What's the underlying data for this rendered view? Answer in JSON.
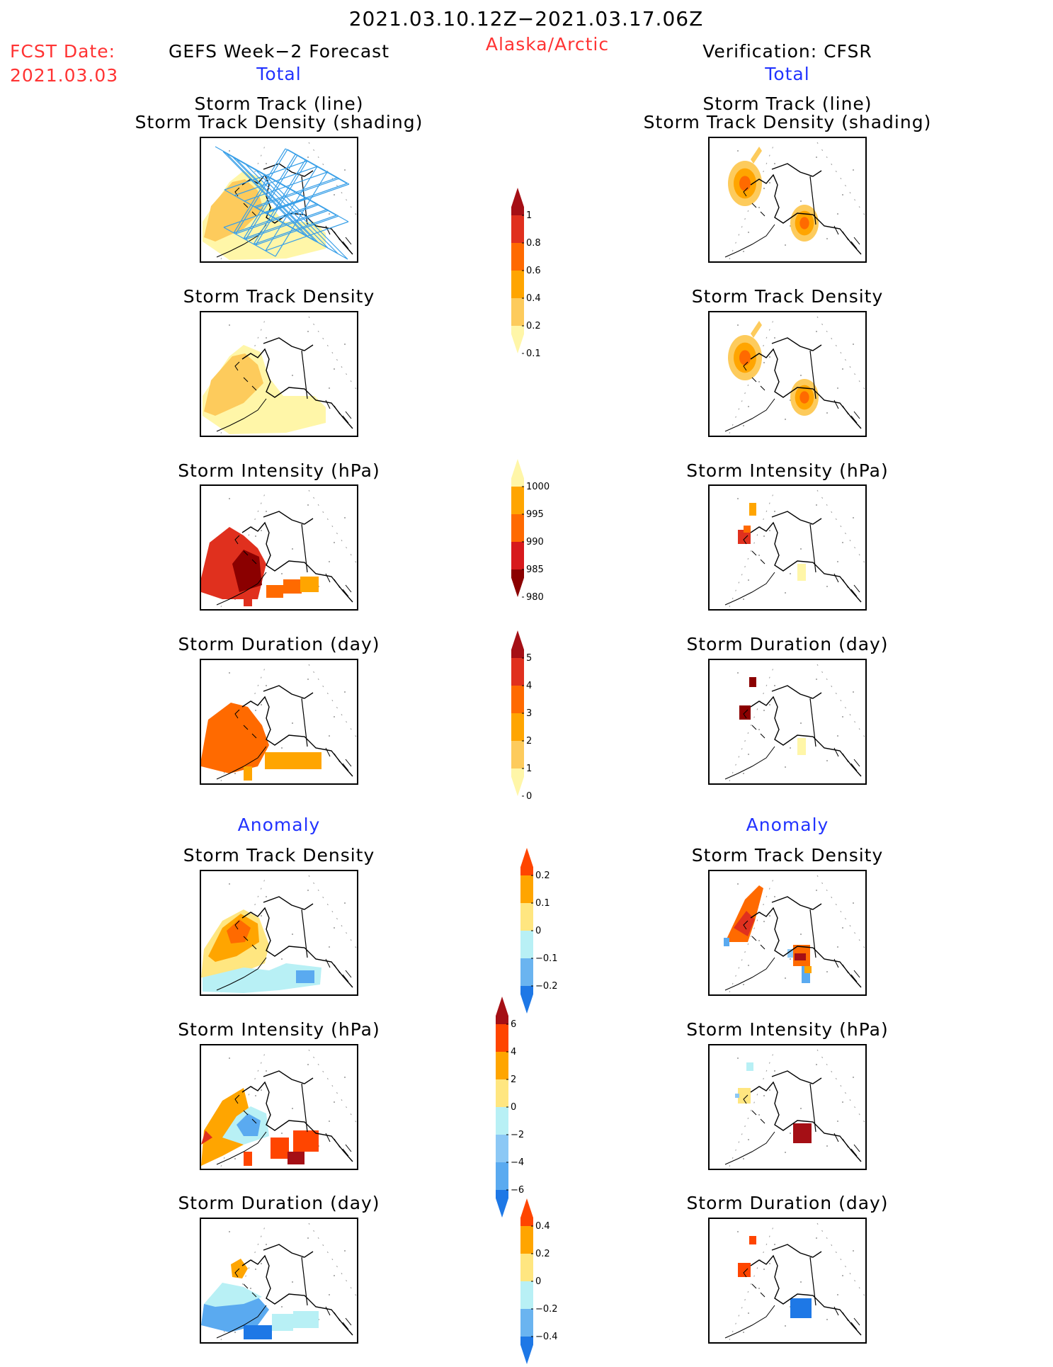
{
  "header": {
    "period": "2021.03.10.12Z−2021.03.17.06Z",
    "region": "Alaska/Arctic",
    "fcst_label": "FCST Date:",
    "fcst_date": "2021.03.03",
    "left_title": "GEFS Week−2 Forecast",
    "right_title": "Verification: CFSR",
    "total": "Total",
    "anomaly": "Anomaly"
  },
  "panel_titles": {
    "track_line": "Storm Track (line)",
    "track_shading": "Storm Track Density (shading)",
    "density": "Storm Track Density",
    "intensity": "Storm Intensity (hPa)",
    "duration": "Storm Duration (day)"
  },
  "colorbars": {
    "density_total": {
      "ticks": [
        "1",
        "0.8",
        "0.6",
        "0.4",
        "0.2",
        "0.1"
      ],
      "colors": [
        "#a50f15",
        "#e0301e",
        "#ff6a00",
        "#ffa500",
        "#fdcb5c",
        "#fff6a8"
      ]
    },
    "intensity_total": {
      "ticks": [
        "1000",
        "995",
        "990",
        "985",
        "980"
      ],
      "colors": [
        "#fff6a8",
        "#ffa500",
        "#ff6a00",
        "#d7191c",
        "#8b0000"
      ]
    },
    "duration_total": {
      "ticks": [
        "5",
        "4",
        "3",
        "2",
        "1",
        "0"
      ],
      "colors": [
        "#a50f15",
        "#e0301e",
        "#ff6a00",
        "#ffa500",
        "#fdcb5c",
        "#fff6a8"
      ]
    },
    "density_anom": {
      "ticks": [
        "0.2",
        "0.1",
        "0",
        "−0.1",
        "−0.2"
      ],
      "colors": [
        "#ff4500",
        "#ffa500",
        "#ffe680",
        "#b8f0f5",
        "#6ab4f0",
        "#1e78e6"
      ]
    },
    "intensity_anom": {
      "ticks": [
        "6",
        "4",
        "2",
        "0",
        "−2",
        "−4",
        "−6"
      ],
      "colors": [
        "#a50f15",
        "#ff4500",
        "#ffa500",
        "#ffe680",
        "#b8f0f5",
        "#8cc8f5",
        "#5aaaf0",
        "#1e78e6"
      ]
    },
    "duration_anom": {
      "ticks": [
        "0.4",
        "0.2",
        "0",
        "−0.2",
        "−0.4"
      ],
      "colors": [
        "#ff4500",
        "#ffa500",
        "#ffe680",
        "#b8f0f5",
        "#6ab4f0",
        "#1e78e6"
      ]
    }
  },
  "colors": {
    "title_red": "#ff3333",
    "title_blue": "#2233ff",
    "track_line": "#3aa0e8"
  }
}
